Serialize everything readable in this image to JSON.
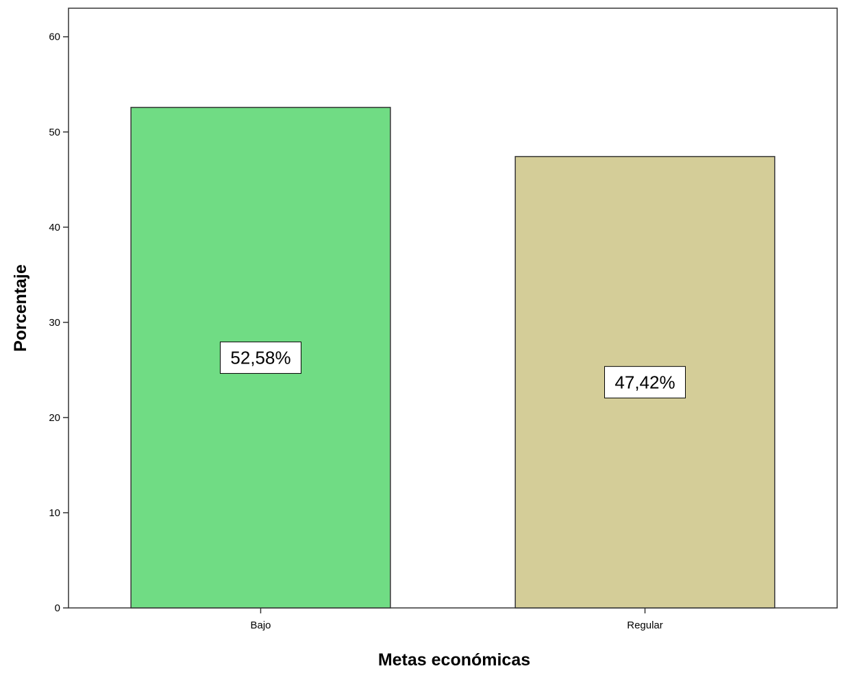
{
  "chart_data": {
    "type": "bar",
    "title": "",
    "xlabel": "Metas económicas",
    "ylabel": "Porcentaje",
    "categories": [
      "Bajo",
      "Regular"
    ],
    "values": [
      52.58,
      47.42
    ],
    "data_labels": [
      "52,58%",
      "47,42%"
    ],
    "bar_colors": [
      "#70dc84",
      "#d4cd98"
    ],
    "ylim": [
      0,
      63
    ],
    "yticks": [
      0,
      10,
      20,
      30,
      40,
      50,
      60
    ],
    "ytick_labels": [
      "0",
      "10",
      "20",
      "30",
      "40",
      "50",
      "60"
    ],
    "grid": false,
    "legend": "none"
  }
}
